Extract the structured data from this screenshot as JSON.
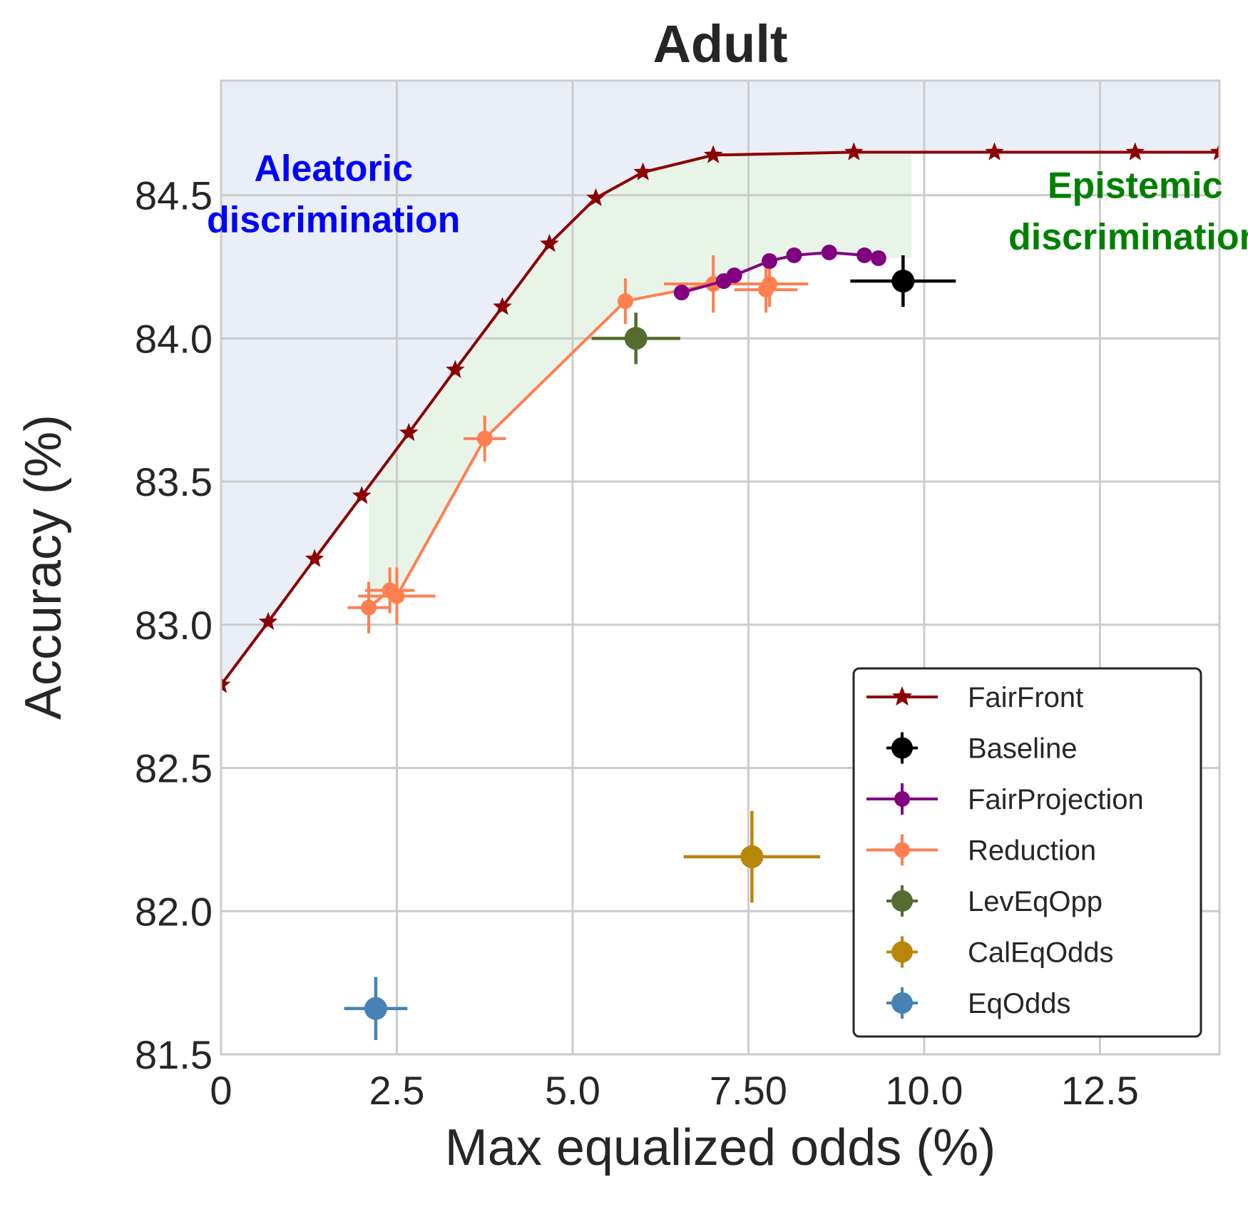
{
  "chart_data": {
    "type": "scatter",
    "title": "Adult",
    "xlabel": "Max equalized odds (%)",
    "ylabel": "Accuracy (%)",
    "xlim": [
      0,
      14.2
    ],
    "ylim": [
      81.5,
      84.9
    ],
    "xticks": [
      0,
      2.5,
      5.0,
      7.5,
      10.0,
      12.5
    ],
    "xtick_labels": [
      "0",
      "2.5",
      "5.0",
      "7.50",
      "10.0",
      "12.5"
    ],
    "yticks": [
      81.5,
      82.0,
      82.5,
      83.0,
      83.5,
      84.0,
      84.5
    ],
    "ytick_labels": [
      "81.5",
      "82.0",
      "82.5",
      "83.0",
      "83.5",
      "84.0",
      "84.5"
    ],
    "grid": true,
    "legend_position": "lower-right",
    "annotations": [
      {
        "lines": [
          "Aleatoric",
          "discrimination"
        ],
        "color": "#0000ff",
        "x": 1.6,
        "y": 84.55
      },
      {
        "lines": [
          "Epistemic",
          "discrimination"
        ],
        "color": "#008000",
        "x": 13.0,
        "y": 84.49
      }
    ],
    "regions": [
      {
        "name": "aleatoric-region",
        "color": "#eaeef6"
      },
      {
        "name": "epistemic-region",
        "color": "#e1f0e1",
        "opacity": 0.75
      }
    ],
    "series": [
      {
        "name": "FairFront",
        "color": "#8b0000",
        "marker": "star",
        "line": true,
        "x": [
          0,
          0.67,
          1.33,
          2.0,
          2.67,
          3.33,
          4.0,
          4.67,
          5.33,
          6.0,
          7.0,
          9.0,
          11.0,
          13.0,
          14.2
        ],
        "y": [
          82.79,
          83.01,
          83.23,
          83.45,
          83.67,
          83.89,
          84.11,
          84.33,
          84.49,
          84.58,
          84.64,
          84.65,
          84.65,
          84.65,
          84.65
        ]
      },
      {
        "name": "Baseline",
        "color": "#000000",
        "marker": "circle",
        "line": false,
        "x": [
          9.7
        ],
        "y": [
          84.2
        ],
        "xerr": [
          0.75
        ],
        "yerr": [
          0.09
        ]
      },
      {
        "name": "FairProjection",
        "color": "#800080",
        "marker": "circle",
        "line": true,
        "x": [
          6.55,
          7.15,
          7.3,
          7.8,
          8.15,
          8.65,
          9.15,
          9.35
        ],
        "y": [
          84.16,
          84.2,
          84.22,
          84.27,
          84.29,
          84.3,
          84.29,
          84.28
        ]
      },
      {
        "name": "Reduction",
        "color": "#ff7f50",
        "marker": "circle",
        "line": true,
        "x": [
          2.1,
          2.4,
          2.5,
          3.75,
          5.75,
          7.0,
          7.8,
          7.75
        ],
        "y": [
          83.06,
          83.12,
          83.1,
          83.65,
          84.13,
          84.19,
          84.19,
          84.17
        ],
        "xerr": [
          0.3,
          0.35,
          0.55,
          0.3,
          0,
          0.7,
          0.55,
          0.45
        ],
        "yerr": [
          0.09,
          0.08,
          0.1,
          0.08,
          0.08,
          0.1,
          0.08,
          0.08
        ]
      },
      {
        "name": "LevEqOpp",
        "color": "#556b2f",
        "marker": "circle",
        "line": false,
        "x": [
          5.9
        ],
        "y": [
          84.0
        ],
        "xerr": [
          0.63
        ],
        "yerr": [
          0.09
        ]
      },
      {
        "name": "CalEqOdds",
        "color": "#b8860b",
        "marker": "circle",
        "line": false,
        "x": [
          7.55
        ],
        "y": [
          82.19
        ],
        "xerr": [
          0.97
        ],
        "yerr": [
          0.16
        ]
      },
      {
        "name": "EqOdds",
        "color": "#4682b4",
        "marker": "circle",
        "line": false,
        "x": [
          2.2
        ],
        "y": [
          81.66
        ],
        "xerr": [
          0.45
        ],
        "yerr": [
          0.11
        ]
      }
    ]
  }
}
